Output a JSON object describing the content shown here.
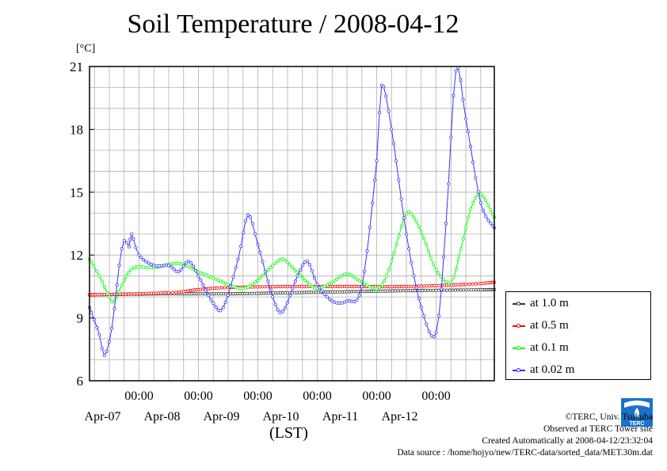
{
  "page": {
    "title": "Soil Temperature / 2008-04-12",
    "unit_label": "[°C]",
    "xlabel": "(LST)",
    "footer": [
      "©TERC, Univ. Tsukuba",
      "Observed at TERC Tower site",
      "Created Automatically at 2008-04-12/23:32:04",
      "Data source : /home/hojyo/new/TERC-data/sorted_data/MET.30m.dat"
    ],
    "logo_text": "TERC"
  },
  "chart_data": {
    "type": "line",
    "title": "Soil Temperature / 2008-04-12",
    "xlabel": "(LST)",
    "ylabel": "[°C]",
    "xlim": [
      "2008-04-06 04:00",
      "2008-04-12 23:30"
    ],
    "ylim": [
      6,
      21
    ],
    "yticks": [
      6,
      9,
      12,
      15,
      18,
      21
    ],
    "xtick_time_label": "00:00",
    "xticks": [
      "2008-04-07 00:00",
      "2008-04-08 00:00",
      "2008-04-09 00:00",
      "2008-04-10 00:00",
      "2008-04-11 00:00",
      "2008-04-12 00:00"
    ],
    "date_labels": [
      {
        "label": "Apr-07",
        "x": "2008-04-07 00:00"
      },
      {
        "label": "Apr-08",
        "x": "2008-04-08 00:00"
      },
      {
        "label": "Apr-09",
        "x": "2008-04-09 00:00"
      },
      {
        "label": "Apr-10",
        "x": "2008-04-10 00:00"
      },
      {
        "label": "Apr-11",
        "x": "2008-04-11 00:00"
      },
      {
        "label": "Apr-12",
        "x": "2008-04-12 00:00"
      }
    ],
    "grid": true,
    "legend_position": "right",
    "series": [
      {
        "name": "at 1.0 m",
        "color": "#333333",
        "points": [
          [
            "2008-04-06 04:00",
            10.1
          ],
          [
            "2008-04-07 12:00",
            10.15
          ],
          [
            "2008-04-08 12:00",
            10.15
          ],
          [
            "2008-04-09 12:00",
            10.2
          ],
          [
            "2008-04-10 12:00",
            10.25
          ],
          [
            "2008-04-11 12:00",
            10.3
          ],
          [
            "2008-04-12 23:30",
            10.35
          ]
        ]
      },
      {
        "name": "at 0.5 m",
        "color": "#ff0000",
        "points": [
          [
            "2008-04-06 04:00",
            10.1
          ],
          [
            "2008-04-07 12:00",
            10.2
          ],
          [
            "2008-04-08 00:00",
            10.35
          ],
          [
            "2008-04-08 12:00",
            10.45
          ],
          [
            "2008-04-09 12:00",
            10.5
          ],
          [
            "2008-04-10 12:00",
            10.5
          ],
          [
            "2008-04-11 12:00",
            10.5
          ],
          [
            "2008-04-12 12:00",
            10.6
          ],
          [
            "2008-04-12 23:30",
            10.7
          ]
        ]
      },
      {
        "name": "at 0.1 m",
        "color": "#00ff00",
        "points": [
          [
            "2008-04-06 04:00",
            11.8
          ],
          [
            "2008-04-06 08:00",
            11.0
          ],
          [
            "2008-04-06 12:00",
            10.0
          ],
          [
            "2008-04-06 14:00",
            9.8
          ],
          [
            "2008-04-06 18:00",
            10.8
          ],
          [
            "2008-04-06 22:00",
            11.4
          ],
          [
            "2008-04-07 06:00",
            11.4
          ],
          [
            "2008-04-07 16:00",
            11.6
          ],
          [
            "2008-04-08 00:00",
            11.2
          ],
          [
            "2008-04-08 06:00",
            10.9
          ],
          [
            "2008-04-08 12:00",
            10.6
          ],
          [
            "2008-04-08 18:00",
            10.4
          ],
          [
            "2008-04-09 00:00",
            10.8
          ],
          [
            "2008-04-09 06:00",
            11.5
          ],
          [
            "2008-04-09 10:00",
            11.8
          ],
          [
            "2008-04-09 14:00",
            11.4
          ],
          [
            "2008-04-09 20:00",
            10.7
          ],
          [
            "2008-04-10 00:00",
            10.4
          ],
          [
            "2008-04-10 06:00",
            10.7
          ],
          [
            "2008-04-10 12:00",
            11.1
          ],
          [
            "2008-04-10 18:00",
            10.7
          ],
          [
            "2008-04-11 00:00",
            10.4
          ],
          [
            "2008-04-11 04:00",
            11.0
          ],
          [
            "2008-04-11 08:00",
            12.5
          ],
          [
            "2008-04-11 12:00",
            14.0
          ],
          [
            "2008-04-11 16:00",
            13.6
          ],
          [
            "2008-04-11 20:00",
            12.5
          ],
          [
            "2008-04-12 00:00",
            11.3
          ],
          [
            "2008-04-12 06:00",
            10.7
          ],
          [
            "2008-04-12 10:00",
            12.3
          ],
          [
            "2008-04-12 14:00",
            14.2
          ],
          [
            "2008-04-12 18:00",
            14.9
          ],
          [
            "2008-04-12 23:30",
            13.8
          ]
        ]
      },
      {
        "name": "at 0.02 m",
        "color": "#3333ff",
        "points": [
          [
            "2008-04-06 04:00",
            9.5
          ],
          [
            "2008-04-06 08:00",
            8.2
          ],
          [
            "2008-04-06 10:00",
            7.2
          ],
          [
            "2008-04-06 13:00",
            8.5
          ],
          [
            "2008-04-06 16:00",
            11.5
          ],
          [
            "2008-04-06 18:00",
            12.7
          ],
          [
            "2008-04-06 20:00",
            12.4
          ],
          [
            "2008-04-06 21:00",
            13.0
          ],
          [
            "2008-04-07 00:00",
            12.0
          ],
          [
            "2008-04-07 06:00",
            11.5
          ],
          [
            "2008-04-07 12:00",
            11.5
          ],
          [
            "2008-04-07 16:00",
            11.2
          ],
          [
            "2008-04-07 20:00",
            11.7
          ],
          [
            "2008-04-08 00:00",
            11.0
          ],
          [
            "2008-04-08 06:00",
            9.7
          ],
          [
            "2008-04-08 10:00",
            9.5
          ],
          [
            "2008-04-08 16:00",
            11.8
          ],
          [
            "2008-04-08 20:00",
            13.9
          ],
          [
            "2008-04-09 00:00",
            12.5
          ],
          [
            "2008-04-09 06:00",
            10.0
          ],
          [
            "2008-04-09 10:00",
            9.3
          ],
          [
            "2008-04-09 16:00",
            11.0
          ],
          [
            "2008-04-09 20:00",
            11.7
          ],
          [
            "2008-04-10 00:00",
            10.6
          ],
          [
            "2008-04-10 06:00",
            9.8
          ],
          [
            "2008-04-10 12:00",
            9.8
          ],
          [
            "2008-04-10 18:00",
            10.5
          ],
          [
            "2008-04-11 00:00",
            16.5
          ],
          [
            "2008-04-11 02:00",
            20.1
          ],
          [
            "2008-04-11 06:00",
            18.0
          ],
          [
            "2008-04-11 12:00",
            13.0
          ],
          [
            "2008-04-11 18:00",
            9.5
          ],
          [
            "2008-04-12 00:00",
            8.3
          ],
          [
            "2008-04-12 04:00",
            13.5
          ],
          [
            "2008-04-12 08:00",
            20.8
          ],
          [
            "2008-04-12 12:00",
            18.5
          ],
          [
            "2008-04-12 18:00",
            14.5
          ],
          [
            "2008-04-12 23:30",
            13.3
          ]
        ]
      }
    ]
  }
}
